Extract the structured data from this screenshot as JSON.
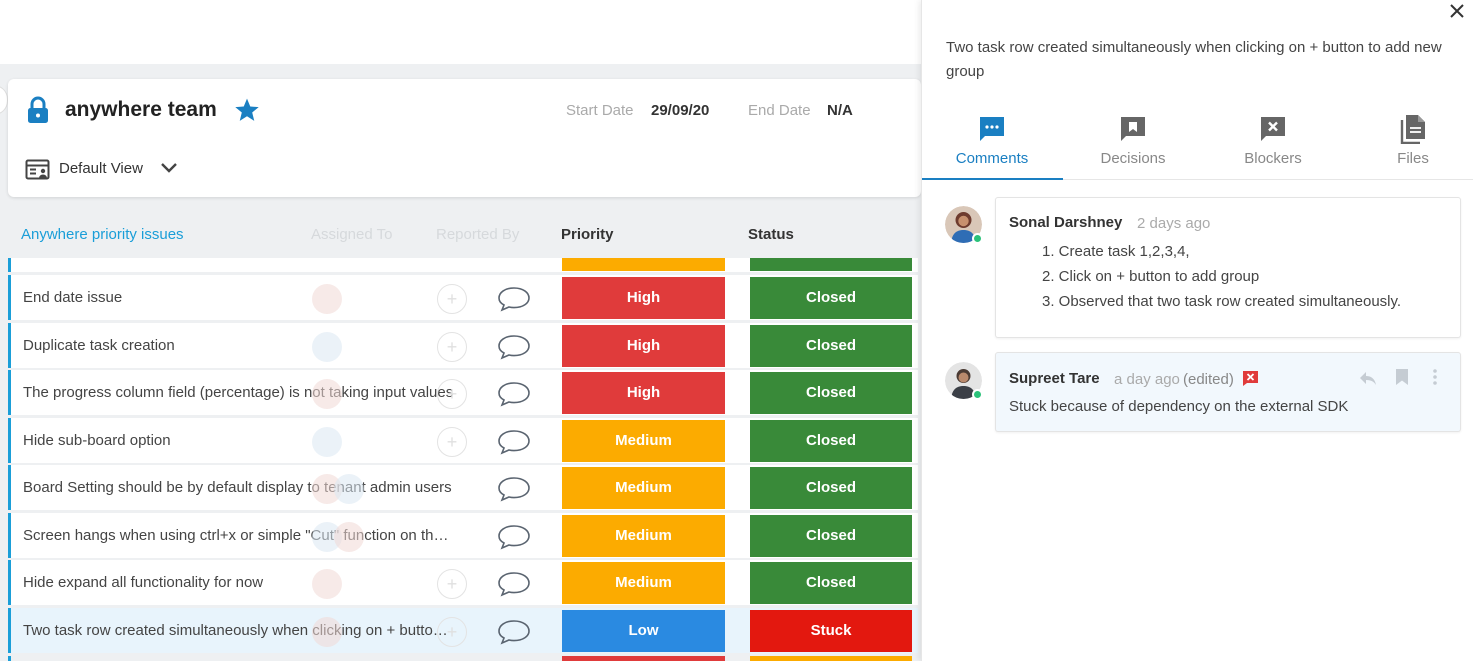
{
  "board": {
    "title": "anywhere team",
    "start_label": "Start Date",
    "start_value": "29/09/20",
    "end_label": "End Date",
    "end_value": "N/A",
    "view_label": "Default View",
    "group_title": "Anywhere priority issues",
    "columns": {
      "assigned": "Assigned To",
      "reported": "Reported By",
      "priority": "Priority",
      "status": "Status"
    },
    "rows": [
      {
        "title": "End date issue",
        "priority": "High",
        "status": "Closed"
      },
      {
        "title": "Duplicate task creation",
        "priority": "High",
        "status": "Closed"
      },
      {
        "title": "The progress column field (percentage) is not taking input values",
        "priority": "High",
        "status": "Closed"
      },
      {
        "title": "Hide sub-board option",
        "priority": "Medium",
        "status": "Closed"
      },
      {
        "title": "Board Setting should be by default display to tenant admin users",
        "priority": "Medium",
        "status": "Closed"
      },
      {
        "title": "Screen hangs when using ctrl+x or simple \"Cut\" function on the board",
        "priority": "Medium",
        "status": "Closed"
      },
      {
        "title": "Hide expand all functionality for now",
        "priority": "Medium",
        "status": "Closed"
      },
      {
        "title": "Two task row created simultaneously when clicking on + button to add new group",
        "priority": "Low",
        "status": "Stuck"
      }
    ]
  },
  "colors": {
    "high": "#e03b3b",
    "medium": "#fcab00",
    "low": "#2a8ae1",
    "closed": "#398a39",
    "stuck": "#e3180f",
    "accent": "#1a7fc2"
  },
  "panel": {
    "title": "Two task row created simultaneously when clicking on + button to add new group",
    "tabs": [
      {
        "label": "Comments",
        "icon": "comments-icon"
      },
      {
        "label": "Decisions",
        "icon": "decisions-icon"
      },
      {
        "label": "Blockers",
        "icon": "blockers-icon"
      },
      {
        "label": "Files",
        "icon": "files-icon"
      }
    ],
    "comments": [
      {
        "author": "Sonal Darshney",
        "time": "2 days ago",
        "items": [
          "1. Create task 1,2,3,4,",
          "2. Click on + button to add group",
          "3. Observed that two task row created simultaneously."
        ]
      },
      {
        "author": "Supreet Tare",
        "time": "a day ago",
        "edited": "(edited)",
        "text": "Stuck because of dependency on the external SDK"
      }
    ]
  }
}
